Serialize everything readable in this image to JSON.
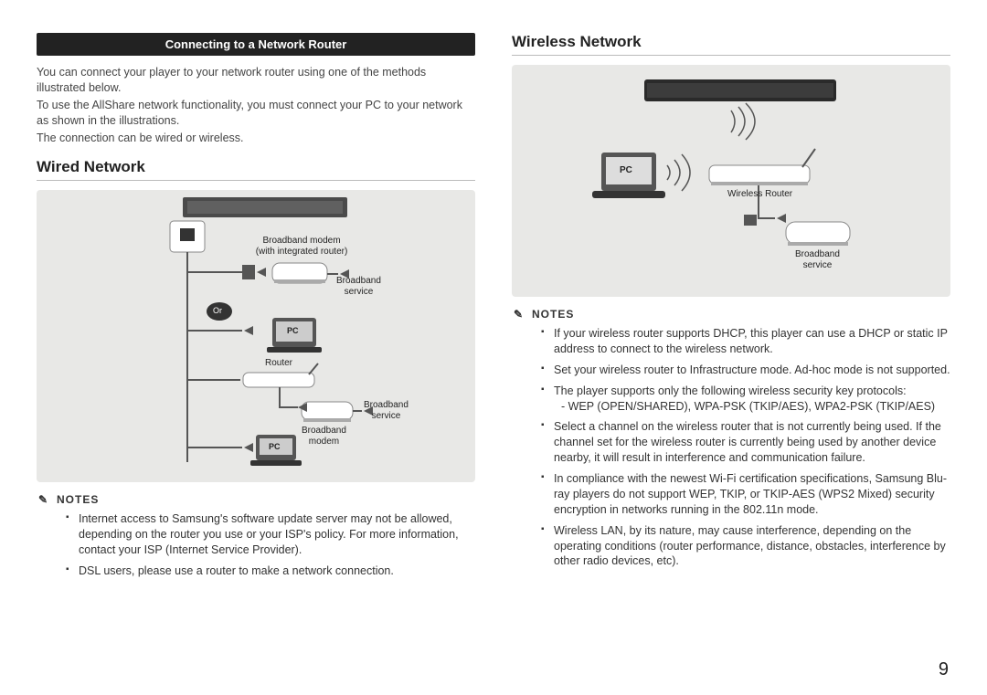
{
  "banner": "Connecting to a Network Router",
  "intro": {
    "p1": "You can connect your player to your network router using one of the methods illustrated below.",
    "p2": "To use the AllShare network functionality, you must connect your PC to your network as shown in the illustrations.",
    "p3": "The connection can be wired or wireless."
  },
  "left": {
    "heading": "Wired Network",
    "notes_label": "NOTES",
    "notes": [
      "Internet access to Samsung's software update server may not be allowed, depending on the router you use or your ISP's policy. For more information, contact your ISP (Internet Service Provider).",
      "DSL users, please use a router to make a network connection."
    ],
    "diag": {
      "or": "Or",
      "modem_int": "Broadband modem\n(with integrated router)",
      "broadband_service": "Broadband\nservice",
      "router": "Router",
      "broadband_modem": "Broadband\nmodem",
      "pc": "PC"
    }
  },
  "right": {
    "heading": "Wireless Network",
    "notes_label": "NOTES",
    "notes": [
      "If your wireless router supports DHCP, this player can use a DHCP or static IP address to connect to the wireless network.",
      "Set your wireless router to Infrastructure mode. Ad-hoc mode is not supported.",
      "The player supports only the following wireless security key protocols:",
      "Select a channel on the wireless router that is not currently being used. If the channel set for the wireless router is currently being used by another device nearby, it will result in interference and communication failure.",
      "In compliance with the newest Wi-Fi certification specifications, Samsung Blu-ray players do not support WEP, TKIP, or TKIP-AES (WPS2 Mixed) security encryption in networks running in the 802.11n mode.",
      "Wireless LAN, by its nature, may cause interference, depending on the operating conditions (router performance, distance, obstacles, interference by other radio devices, etc)."
    ],
    "protocols": "- WEP (OPEN/SHARED), WPA-PSK (TKIP/AES), WPA2-PSK (TKIP/AES)",
    "diag": {
      "pc": "PC",
      "wireless_router": "Wireless Router",
      "broadband_service": "Broadband\nservice"
    }
  },
  "page": "9"
}
